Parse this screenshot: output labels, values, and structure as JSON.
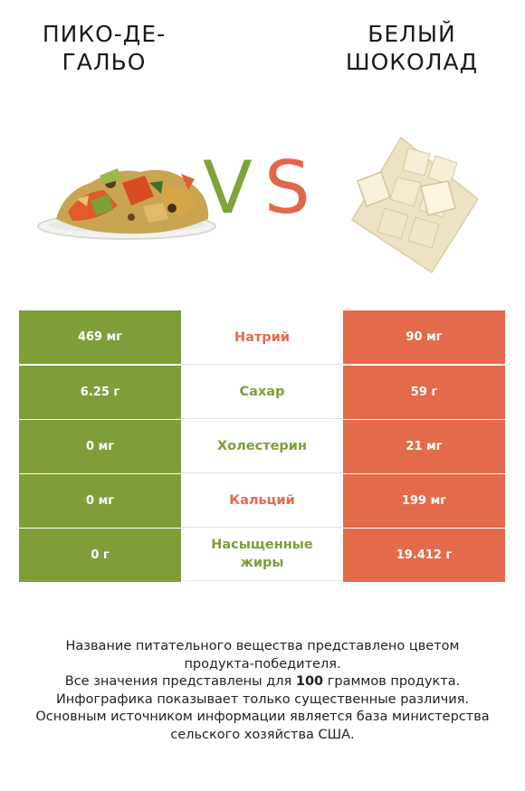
{
  "left_food": {
    "name": "Пико-де-гальо",
    "title_line1": "ПИКО-ДЕ-",
    "title_line2": "ГАЛЬО"
  },
  "right_food": {
    "name": "Белый шоколад",
    "title_line1": "БЕЛЫЙ",
    "title_line2": "ШОКОЛАД"
  },
  "vs": {
    "v": "V",
    "s": "S"
  },
  "colors": {
    "green": "#7e9e3a",
    "orange": "#e36b4c",
    "v_color": "#7fa33a",
    "s_color": "#e0684a"
  },
  "rows": [
    {
      "left": "469 мг",
      "nutrient": "Натрий",
      "right": "90 мг",
      "winner": "right"
    },
    {
      "left": "6.25 г",
      "nutrient": "Сахар",
      "right": "59 г",
      "winner": "left"
    },
    {
      "left": "0 мг",
      "nutrient": "Холестерин",
      "right": "21 мг",
      "winner": "left"
    },
    {
      "left": "0 мг",
      "nutrient": "Кальций",
      "right": "199 мг",
      "winner": "right"
    },
    {
      "left": "0 г",
      "nutrient": "Насыщенные жиры",
      "right": "19.412 г",
      "winner": "left"
    }
  ],
  "footer": {
    "line1": "Название питательного вещества представлено цветом",
    "line2": "продукта-победителя.",
    "line3_pre": "Все значения представлены для ",
    "line3_bold": "100",
    "line3_post": " граммов продукта.",
    "line4": "Инфографика показывает только существенные различия.",
    "line5": "Основным источником информации является база министерства",
    "line6": "сельского хозяйства США."
  }
}
